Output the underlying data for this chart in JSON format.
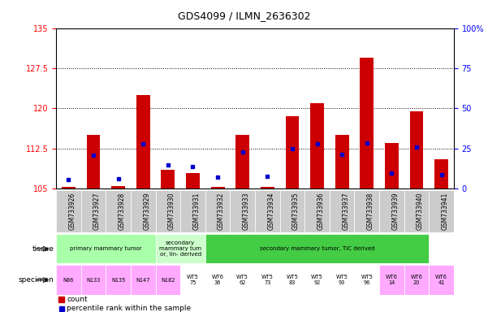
{
  "title": "GDS4099 / ILMN_2636302",
  "samples": [
    "GSM733926",
    "GSM733927",
    "GSM733928",
    "GSM733929",
    "GSM733930",
    "GSM733931",
    "GSM733932",
    "GSM733933",
    "GSM733934",
    "GSM733935",
    "GSM733936",
    "GSM733937",
    "GSM733938",
    "GSM733939",
    "GSM733940",
    "GSM733941"
  ],
  "count_values": [
    105.3,
    115.0,
    105.5,
    122.5,
    108.5,
    108.0,
    105.3,
    115.0,
    105.3,
    118.5,
    121.0,
    115.0,
    129.5,
    113.5,
    119.5,
    110.5
  ],
  "percentile_values": [
    5.5,
    21.0,
    6.0,
    28.0,
    15.0,
    14.0,
    7.0,
    23.0,
    7.5,
    25.0,
    28.0,
    21.5,
    28.5,
    10.0,
    26.0,
    9.0
  ],
  "ylim_left": [
    105,
    135
  ],
  "ylim_right": [
    0,
    100
  ],
  "yticks_left": [
    105,
    112.5,
    120,
    127.5,
    135
  ],
  "yticks_right": [
    0,
    25,
    50,
    75,
    100
  ],
  "bar_color": "#cc0000",
  "dot_color": "#0000cc",
  "tissue_groups": [
    {
      "label": "primary mammary tumor",
      "start": 0,
      "end": 4,
      "color": "#aaffaa"
    },
    {
      "label": "secondary\nmammary tum\nor, lin- derived",
      "start": 4,
      "end": 6,
      "color": "#ccffcc"
    },
    {
      "label": "secondary mammary tumor, TIC derived",
      "start": 6,
      "end": 15,
      "color": "#44cc44"
    }
  ],
  "specimen_labels": [
    "N86",
    "N133",
    "N135",
    "N147",
    "N182",
    "WT5\n75",
    "WT6\n36",
    "WT5\n62",
    "WT5\n73",
    "WT5\n83",
    "WT5\n92",
    "WT5\n93",
    "WT5\n96",
    "WT6\n14",
    "WT6\n20",
    "WT6\n41"
  ],
  "specimen_bg_colors": [
    "#ffaaff",
    "#ffaaff",
    "#ffaaff",
    "#ffaaff",
    "#ffaaff",
    "#ffffff",
    "#ffffff",
    "#ffffff",
    "#ffffff",
    "#ffffff",
    "#ffffff",
    "#ffffff",
    "#ffffff",
    "#ffaaff",
    "#ffaaff",
    "#ffaaff"
  ],
  "legend_count_label": "count",
  "legend_percentile_label": "percentile rank within the sample",
  "xlabel_tissue": "tissue",
  "xlabel_specimen": "specimen",
  "plot_bg": "#ffffff",
  "xtick_bg": "#cccccc",
  "axis_label_fontsize": 7,
  "tick_fontsize": 7,
  "bar_fontsize": 6
}
